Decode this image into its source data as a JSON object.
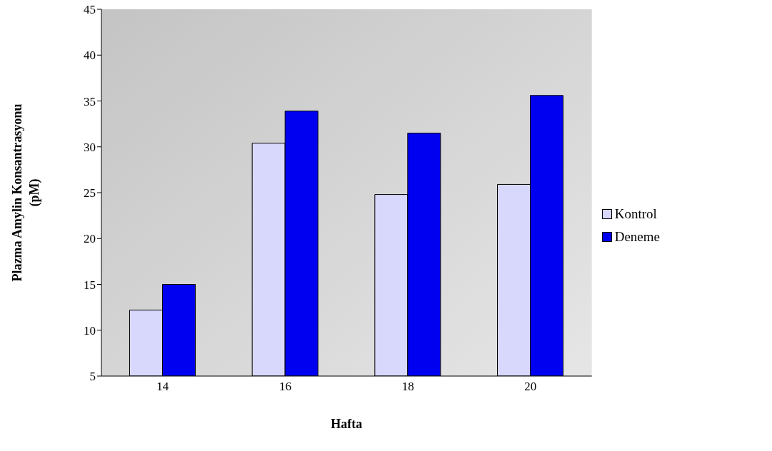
{
  "chart_data": {
    "type": "bar",
    "xlabel": "Hafta",
    "ylabel": "Plazma Amylin Konsantrasyonu (pM)",
    "categories": [
      "14",
      "16",
      "18",
      "20"
    ],
    "series": [
      {
        "name": "Kontrol",
        "color": "#d8d8fc",
        "values": [
          12.2,
          30.4,
          24.8,
          25.9
        ]
      },
      {
        "name": "Deneme",
        "color": "#0000f0",
        "values": [
          15.0,
          33.9,
          31.5,
          35.6
        ]
      }
    ],
    "ylim": [
      5,
      45
    ],
    "yticks": [
      5,
      10,
      15,
      20,
      25,
      30,
      35,
      40,
      45
    ],
    "legend": "right"
  }
}
